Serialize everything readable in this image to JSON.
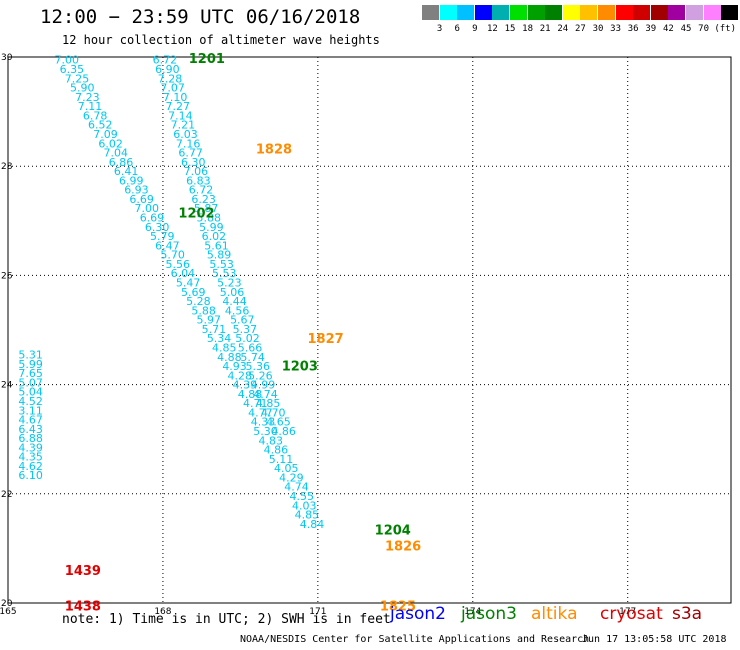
{
  "title": "12:00 − 23:59 UTC 06/16/2018",
  "subtitle": "12 hour collection of altimeter wave heights",
  "legend": {
    "unit": "(ft)",
    "colors": [
      "#808080",
      "#00ffff",
      "#00c0ff",
      "#0000ff",
      "#00b0b0",
      "#00e000",
      "#00a000",
      "#008000",
      "#ffff00",
      "#ffc000",
      "#ff8c00",
      "#ff0000",
      "#d00000",
      "#a00000",
      "#a000a0",
      "#d0a0e0",
      "#ff80ff",
      "#000000"
    ],
    "labels": [
      "3",
      "6",
      "9",
      "12",
      "15",
      "18",
      "21",
      "24",
      "27",
      "30",
      "33",
      "36",
      "39",
      "42",
      "45",
      "70"
    ]
  },
  "axes": {
    "lon_ticks": [
      "165",
      "168",
      "171",
      "174",
      "177"
    ],
    "lat_ticks": [
      "30",
      "28",
      "26",
      "24",
      "22",
      "20"
    ]
  },
  "tracks": [
    {
      "id": "1201",
      "color": "#008000",
      "lon": 168.5,
      "lat": 29.98
    },
    {
      "id": "1202",
      "color": "#008000",
      "lon": 168.3,
      "lat": 27.15
    },
    {
      "id": "1203",
      "color": "#008000",
      "lon": 170.3,
      "lat": 24.35
    },
    {
      "id": "1204",
      "color": "#008000",
      "lon": 172.1,
      "lat": 21.35
    },
    {
      "id": "1828",
      "color": "#ff8c00",
      "lon": 169.8,
      "lat": 28.32
    },
    {
      "id": "1827",
      "color": "#ff8c00",
      "lon": 170.8,
      "lat": 24.85
    },
    {
      "id": "1826",
      "color": "#ff8c00",
      "lon": 172.3,
      "lat": 21.05
    },
    {
      "id": "1825",
      "color": "#ff8c00",
      "lon": 172.2,
      "lat": 19.95
    },
    {
      "id": "1439",
      "color": "#e00000",
      "lon": 166.1,
      "lat": 20.6
    },
    {
      "id": "1438",
      "color": "#e00000",
      "lon": 166.1,
      "lat": 19.95
    }
  ],
  "chart_data": {
    "type": "scatter",
    "unit": "ft",
    "xlim": [
      165,
      179
    ],
    "ylim": [
      20,
      30
    ],
    "series": [
      {
        "points": [
          [
            165.9,
            29.95,
            "7.00"
          ],
          [
            166.0,
            29.78,
            "6.35"
          ],
          [
            166.1,
            29.61,
            "7.25"
          ],
          [
            166.2,
            29.44,
            "5.90"
          ],
          [
            166.3,
            29.27,
            "7.23"
          ],
          [
            166.35,
            29.1,
            "7.11"
          ],
          [
            166.45,
            28.93,
            "6.78"
          ],
          [
            166.55,
            28.76,
            "6.52"
          ],
          [
            166.65,
            28.59,
            "7.09"
          ],
          [
            166.75,
            28.42,
            "6.02"
          ],
          [
            166.85,
            28.25,
            "7.04"
          ],
          [
            166.95,
            28.08,
            "6.86"
          ],
          [
            167.05,
            27.91,
            "6.41"
          ],
          [
            167.15,
            27.74,
            "6.99"
          ],
          [
            167.25,
            27.57,
            "6.93"
          ],
          [
            167.35,
            27.4,
            "6.69"
          ],
          [
            167.45,
            27.23,
            "7.00"
          ],
          [
            167.55,
            27.06,
            "6.69"
          ],
          [
            167.65,
            26.89,
            "6.30"
          ],
          [
            167.75,
            26.72,
            "5.79"
          ],
          [
            167.85,
            26.55,
            "6.47"
          ],
          [
            167.95,
            26.38,
            "5.70"
          ],
          [
            168.05,
            26.21,
            "5.56"
          ],
          [
            168.15,
            26.04,
            "6.04"
          ],
          [
            168.25,
            25.87,
            "5.47"
          ],
          [
            168.35,
            25.7,
            "5.69"
          ],
          [
            168.45,
            25.53,
            "5.28"
          ],
          [
            168.55,
            25.36,
            "5.88"
          ],
          [
            168.65,
            25.19,
            "5.97"
          ],
          [
            168.75,
            25.02,
            "5.71"
          ],
          [
            168.85,
            24.85,
            "5.34"
          ],
          [
            168.95,
            24.68,
            "4.85"
          ],
          [
            169.05,
            24.51,
            "4.88"
          ],
          [
            169.15,
            24.34,
            "4.93"
          ],
          [
            169.25,
            24.17,
            "4.28"
          ],
          [
            169.35,
            24.0,
            "4.39"
          ],
          [
            169.45,
            23.83,
            "4.88"
          ],
          [
            169.55,
            23.66,
            "4.71"
          ],
          [
            169.65,
            23.49,
            "4.77"
          ],
          [
            169.7,
            23.32,
            "4.33"
          ],
          [
            169.75,
            23.15,
            "5.30"
          ],
          [
            169.85,
            22.98,
            "4.83"
          ],
          [
            169.95,
            22.81,
            "4.86"
          ],
          [
            170.05,
            22.64,
            "5.11"
          ],
          [
            170.15,
            22.47,
            "4.05"
          ],
          [
            170.25,
            22.3,
            "4.29"
          ],
          [
            170.35,
            22.13,
            "4.74"
          ],
          [
            170.45,
            21.96,
            "4.55"
          ],
          [
            170.5,
            21.79,
            "4.03"
          ],
          [
            170.55,
            21.62,
            "4.85"
          ],
          [
            170.65,
            21.45,
            "4.84"
          ],
          [
            167.8,
            29.95,
            "6.72"
          ],
          [
            167.85,
            29.78,
            "6.90"
          ],
          [
            167.9,
            29.61,
            "7.28"
          ],
          [
            167.95,
            29.44,
            "7.07"
          ],
          [
            168.0,
            29.27,
            "7.10"
          ],
          [
            168.05,
            29.1,
            "7.27"
          ],
          [
            168.1,
            28.93,
            "7.14"
          ],
          [
            168.15,
            28.76,
            "7.21"
          ],
          [
            168.2,
            28.59,
            "6.03"
          ],
          [
            168.25,
            28.42,
            "7.16"
          ],
          [
            168.3,
            28.25,
            "6.77"
          ],
          [
            168.35,
            28.08,
            "6.30"
          ],
          [
            168.4,
            27.91,
            "7.06"
          ],
          [
            168.45,
            27.74,
            "6.83"
          ],
          [
            168.5,
            27.57,
            "6.72"
          ],
          [
            168.55,
            27.4,
            "6.23"
          ],
          [
            168.6,
            27.23,
            "5.87"
          ],
          [
            168.65,
            27.06,
            "5.88"
          ],
          [
            168.7,
            26.89,
            "5.99"
          ],
          [
            168.75,
            26.72,
            "6.02"
          ],
          [
            168.8,
            26.55,
            "5.61"
          ],
          [
            168.85,
            26.38,
            "5.89"
          ],
          [
            168.9,
            26.21,
            "5.53"
          ],
          [
            168.95,
            26.04,
            "5.53"
          ],
          [
            169.05,
            25.87,
            "5.23"
          ],
          [
            169.1,
            25.7,
            "5.06"
          ],
          [
            169.15,
            25.53,
            "4.44"
          ],
          [
            169.2,
            25.36,
            "4.56"
          ],
          [
            169.3,
            25.19,
            "5.67"
          ],
          [
            169.35,
            25.02,
            "5.37"
          ],
          [
            169.4,
            24.85,
            "5.02"
          ],
          [
            169.45,
            24.68,
            "5.66"
          ],
          [
            169.5,
            24.51,
            "5.74"
          ],
          [
            169.6,
            24.34,
            "5.36"
          ],
          [
            169.65,
            24.17,
            "5.26"
          ],
          [
            169.7,
            24.0,
            "4.99"
          ],
          [
            169.75,
            23.83,
            "4.74"
          ],
          [
            169.8,
            23.66,
            "4.85"
          ],
          [
            169.9,
            23.49,
            "4.70"
          ],
          [
            170.0,
            23.32,
            "4.65"
          ],
          [
            170.1,
            23.15,
            "4.86"
          ],
          [
            165.2,
            24.55,
            "5.31"
          ],
          [
            165.2,
            24.38,
            "5.99"
          ],
          [
            165.2,
            24.21,
            "7.65"
          ],
          [
            165.2,
            24.04,
            "5.07"
          ],
          [
            165.2,
            23.87,
            "5.04"
          ],
          [
            165.2,
            23.7,
            "4.52"
          ],
          [
            165.2,
            23.53,
            "3.11"
          ],
          [
            165.2,
            23.36,
            "4.67"
          ],
          [
            165.2,
            23.19,
            "6.43"
          ],
          [
            165.2,
            23.02,
            "6.88"
          ],
          [
            165.2,
            22.85,
            "4.39"
          ],
          [
            165.2,
            22.68,
            "4.35"
          ],
          [
            165.2,
            22.51,
            "4.62"
          ],
          [
            165.2,
            22.34,
            "6.10"
          ]
        ]
      }
    ]
  },
  "note": "note:  1) Time is in UTC; 2) SWH is in feet",
  "satellites": [
    {
      "name": "jason2",
      "color": "#0000ff"
    },
    {
      "name": "jason3",
      "color": "#008000"
    },
    {
      "name": "altika",
      "color": "#ff8c00"
    },
    {
      "name": "cryosat",
      "color": "#e00000"
    },
    {
      "name": "s3a",
      "color": "#a00000"
    }
  ],
  "credit": "NOAA/NESDIS Center for Satellite Applications and Research",
  "credit_time": "Jun 17 13:05:58 UTC 2018"
}
